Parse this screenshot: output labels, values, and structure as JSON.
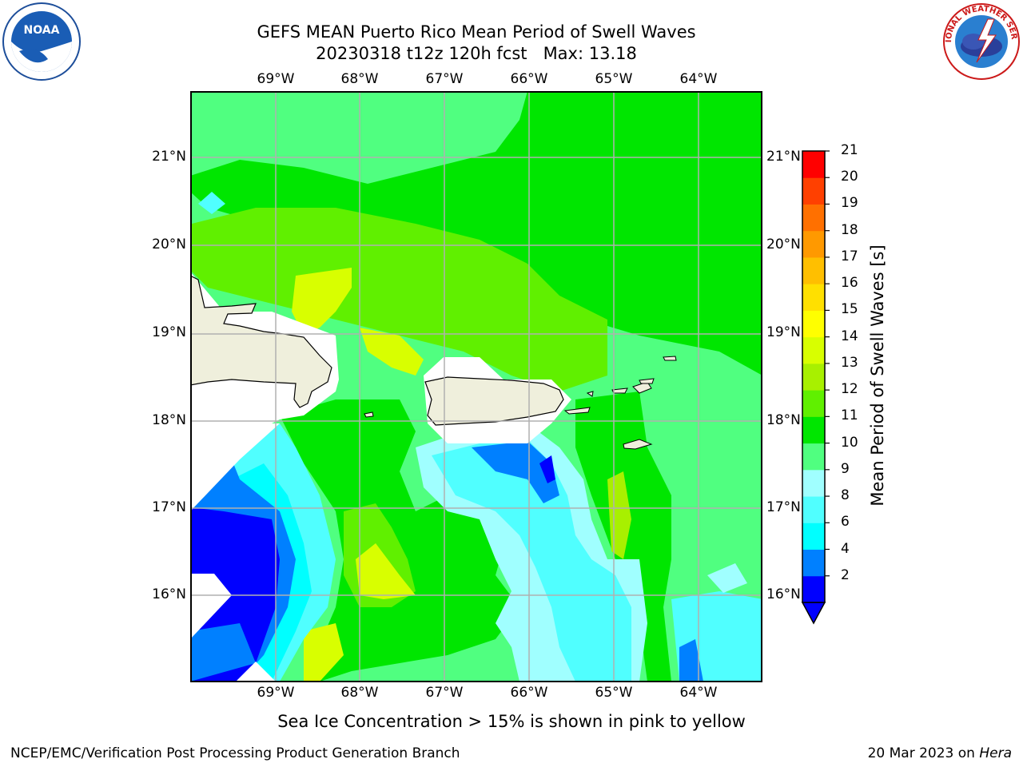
{
  "title_line1": "GEFS MEAN Puerto Rico Mean Period of Swell Waves",
  "title_line2": "20230318 t12z 120h fcst   Max: 13.18",
  "logos": {
    "left": {
      "text": "NOAA",
      "icon": "noaa-logo-icon"
    },
    "right": {
      "text": "NATIONAL WEATHER SERVICE",
      "icon": "nws-logo-icon"
    }
  },
  "lon_labels": [
    "69°W",
    "68°W",
    "67°W",
    "66°W",
    "65°W",
    "64°W"
  ],
  "lat_labels": [
    "21°N",
    "20°N",
    "19°N",
    "18°N",
    "17°N",
    "16°N"
  ],
  "colorbar": {
    "label": "Mean Period of Swell Waves [s]",
    "ticks": [
      "21",
      "20",
      "19",
      "18",
      "17",
      "16",
      "15",
      "14",
      "13",
      "12",
      "11",
      "10",
      "9",
      "8",
      "6",
      "4",
      "2"
    ],
    "colors": [
      "#0000ff",
      "#0080ff",
      "#00ffff",
      "#50ffff",
      "#a0ffff",
      "#50ff80",
      "#00e600",
      "#60f000",
      "#a8f000",
      "#d8ff00",
      "#ffff00",
      "#ffe000",
      "#ffbf00",
      "#ff9900",
      "#ff7000",
      "#ff4000",
      "#ff0000"
    ]
  },
  "footer_note": "Sea Ice Concentration > 15% is shown in pink to yellow",
  "footer_left": "NCEP/EMC/Verification Post Processing Product Generation Branch",
  "footer_date": "20 Mar 2023 on",
  "footer_machine": "Hera"
}
